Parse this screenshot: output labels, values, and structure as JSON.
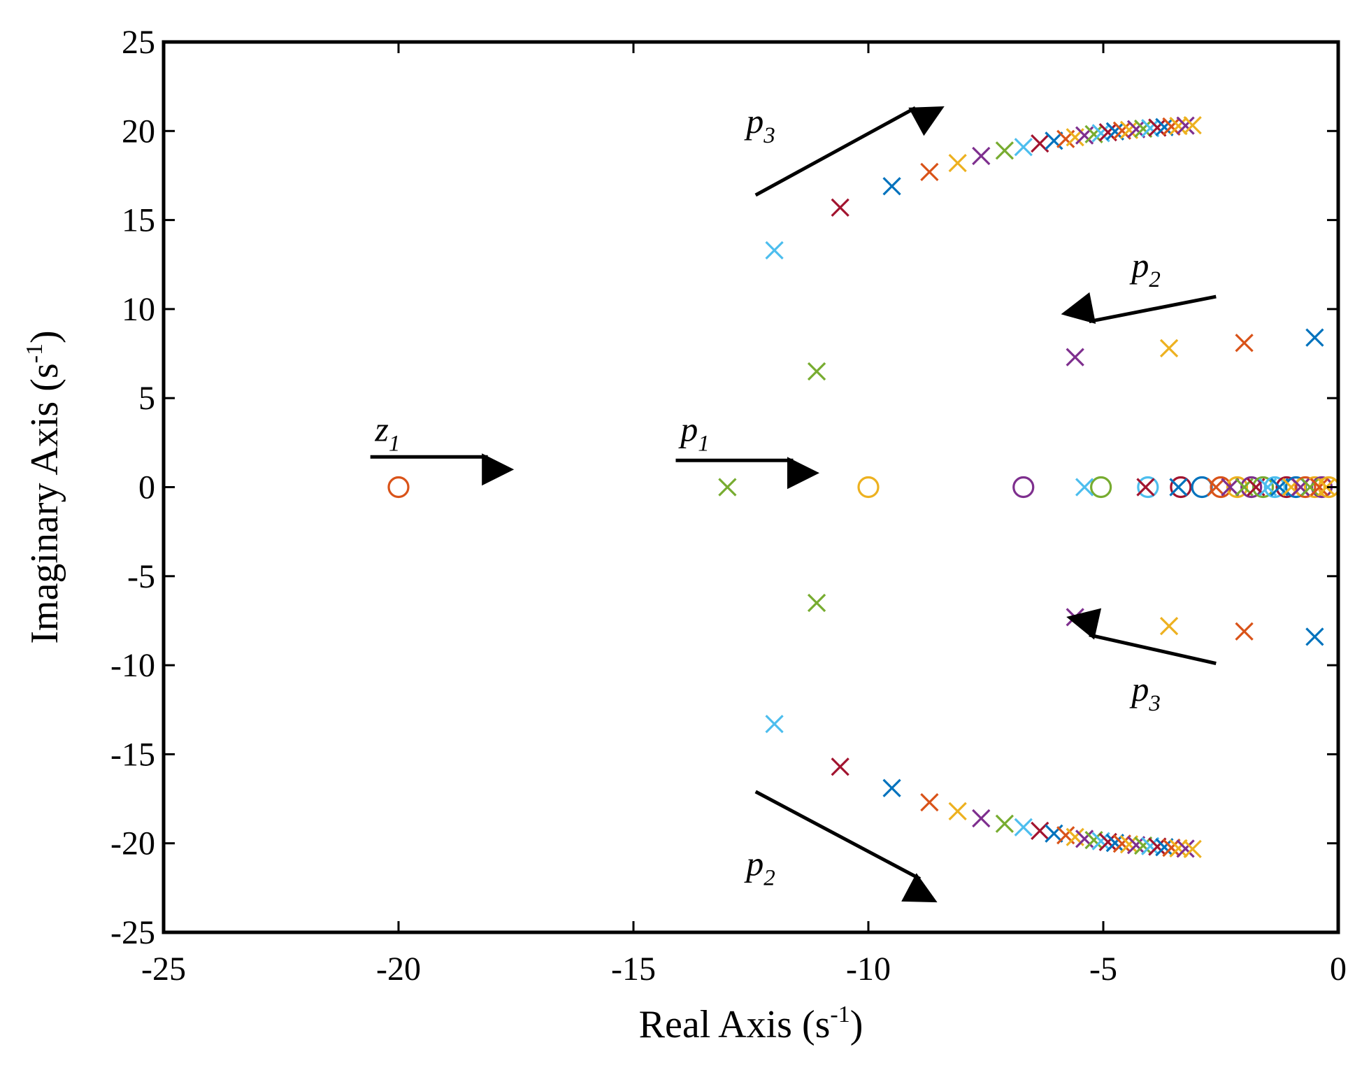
{
  "chart_data": {
    "type": "scatter",
    "title": "",
    "xlabel": {
      "text": "Real Axis (s",
      "sup": "-1",
      "close": ")"
    },
    "ylabel": {
      "text": "Imaginary Axis (s",
      "sup": "-1",
      "close": ")"
    },
    "xlim": [
      -25,
      0
    ],
    "ylim": [
      -25,
      25
    ],
    "xticks": [
      -25,
      -20,
      -15,
      -10,
      -5,
      0
    ],
    "yticks": [
      -25,
      -20,
      -15,
      -10,
      -5,
      0,
      5,
      10,
      15,
      20,
      25
    ],
    "grid": false,
    "palette": [
      "#0072BD",
      "#D95319",
      "#EDB120",
      "#7E2F8E",
      "#77AC30",
      "#4DBEEE",
      "#A2142F"
    ],
    "poles": [
      {
        "x": -0.5,
        "y": 8.4,
        "c": 0
      },
      {
        "x": -0.5,
        "y": -8.4,
        "c": 0
      },
      {
        "x": -2.0,
        "y": 8.1,
        "c": 1
      },
      {
        "x": -2.0,
        "y": -8.1,
        "c": 1
      },
      {
        "x": -3.6,
        "y": 7.8,
        "c": 2
      },
      {
        "x": -3.6,
        "y": -7.8,
        "c": 2
      },
      {
        "x": -5.6,
        "y": 7.3,
        "c": 3
      },
      {
        "x": -5.6,
        "y": -7.3,
        "c": 3
      },
      {
        "x": -11.1,
        "y": 6.5,
        "c": 4
      },
      {
        "x": -11.1,
        "y": -6.5,
        "c": 4
      },
      {
        "x": -12.0,
        "y": 13.3,
        "c": 5
      },
      {
        "x": -12.0,
        "y": -13.3,
        "c": 5
      },
      {
        "x": -10.6,
        "y": 15.7,
        "c": 6
      },
      {
        "x": -10.6,
        "y": -15.7,
        "c": 6
      },
      {
        "x": -9.5,
        "y": 16.9,
        "c": 0
      },
      {
        "x": -9.5,
        "y": -16.9,
        "c": 0
      },
      {
        "x": -8.7,
        "y": 17.7,
        "c": 1
      },
      {
        "x": -8.7,
        "y": -17.7,
        "c": 1
      },
      {
        "x": -8.1,
        "y": 18.2,
        "c": 2
      },
      {
        "x": -8.1,
        "y": -18.2,
        "c": 2
      },
      {
        "x": -7.6,
        "y": 18.6,
        "c": 3
      },
      {
        "x": -7.6,
        "y": -18.6,
        "c": 3
      },
      {
        "x": -7.1,
        "y": 18.9,
        "c": 4
      },
      {
        "x": -7.1,
        "y": -18.9,
        "c": 4
      },
      {
        "x": -6.7,
        "y": 19.1,
        "c": 5
      },
      {
        "x": -6.7,
        "y": -19.1,
        "c": 5
      },
      {
        "x": -6.35,
        "y": 19.3,
        "c": 6
      },
      {
        "x": -6.35,
        "y": -19.3,
        "c": 6
      },
      {
        "x": -6.05,
        "y": 19.45,
        "c": 0
      },
      {
        "x": -6.05,
        "y": -19.45,
        "c": 0
      },
      {
        "x": -5.8,
        "y": 19.55,
        "c": 1
      },
      {
        "x": -5.8,
        "y": -19.55,
        "c": 1
      },
      {
        "x": -5.6,
        "y": 19.65,
        "c": 2
      },
      {
        "x": -5.6,
        "y": -19.65,
        "c": 2
      },
      {
        "x": -5.4,
        "y": 19.75,
        "c": 3
      },
      {
        "x": -5.4,
        "y": -19.75,
        "c": 3
      },
      {
        "x": -5.2,
        "y": 19.82,
        "c": 4
      },
      {
        "x": -5.2,
        "y": -19.82,
        "c": 4
      },
      {
        "x": -5.05,
        "y": 19.88,
        "c": 5
      },
      {
        "x": -5.05,
        "y": -19.88,
        "c": 5
      },
      {
        "x": -4.9,
        "y": 19.93,
        "c": 6
      },
      {
        "x": -4.9,
        "y": -19.93,
        "c": 6
      },
      {
        "x": -4.75,
        "y": 19.98,
        "c": 0
      },
      {
        "x": -4.75,
        "y": -19.98,
        "c": 0
      },
      {
        "x": -4.6,
        "y": 20.02,
        "c": 1
      },
      {
        "x": -4.6,
        "y": -20.02,
        "c": 1
      },
      {
        "x": -4.45,
        "y": 20.06,
        "c": 2
      },
      {
        "x": -4.45,
        "y": -20.06,
        "c": 2
      },
      {
        "x": -4.3,
        "y": 20.1,
        "c": 3
      },
      {
        "x": -4.3,
        "y": -20.1,
        "c": 3
      },
      {
        "x": -4.15,
        "y": 20.13,
        "c": 4
      },
      {
        "x": -4.15,
        "y": -20.13,
        "c": 4
      },
      {
        "x": -4.0,
        "y": 20.16,
        "c": 5
      },
      {
        "x": -4.0,
        "y": -20.16,
        "c": 5
      },
      {
        "x": -3.85,
        "y": 20.19,
        "c": 6
      },
      {
        "x": -3.85,
        "y": -20.19,
        "c": 6
      },
      {
        "x": -3.7,
        "y": 20.22,
        "c": 0
      },
      {
        "x": -3.7,
        "y": -20.22,
        "c": 0
      },
      {
        "x": -3.55,
        "y": 20.25,
        "c": 1
      },
      {
        "x": -3.55,
        "y": -20.25,
        "c": 1
      },
      {
        "x": -3.4,
        "y": 20.28,
        "c": 2
      },
      {
        "x": -3.4,
        "y": -20.28,
        "c": 2
      },
      {
        "x": -3.25,
        "y": 20.3,
        "c": 3
      },
      {
        "x": -3.25,
        "y": -20.3,
        "c": 3
      },
      {
        "x": -3.1,
        "y": 20.32,
        "c": 2
      },
      {
        "x": -3.1,
        "y": -20.32,
        "c": 2
      },
      {
        "x": -13.0,
        "y": 0,
        "c": 4
      },
      {
        "x": -5.4,
        "y": 0,
        "c": 5
      },
      {
        "x": -4.1,
        "y": 0,
        "c": 6
      },
      {
        "x": -3.4,
        "y": 0,
        "c": 0
      },
      {
        "x": -2.6,
        "y": 0,
        "c": 1
      },
      {
        "x": -2.3,
        "y": 0,
        "c": 3
      },
      {
        "x": -2.0,
        "y": 0,
        "c": 4
      },
      {
        "x": -1.75,
        "y": 0,
        "c": 6
      },
      {
        "x": -1.5,
        "y": 0,
        "c": 5
      },
      {
        "x": -1.25,
        "y": 0,
        "c": 0
      },
      {
        "x": -1.0,
        "y": 0,
        "c": 2
      },
      {
        "x": -0.8,
        "y": 0,
        "c": 3
      },
      {
        "x": -0.6,
        "y": 0,
        "c": 4
      },
      {
        "x": -0.4,
        "y": 0,
        "c": 1
      },
      {
        "x": -0.25,
        "y": 0,
        "c": 2
      }
    ],
    "zeros": [
      {
        "x": -20.0,
        "y": 0,
        "c": 1
      },
      {
        "x": -10.0,
        "y": 0,
        "c": 2
      },
      {
        "x": -6.7,
        "y": 0,
        "c": 3
      },
      {
        "x": -5.05,
        "y": 0,
        "c": 4
      },
      {
        "x": -4.05,
        "y": 0,
        "c": 5
      },
      {
        "x": -3.35,
        "y": 0,
        "c": 6
      },
      {
        "x": -2.9,
        "y": 0,
        "c": 0
      },
      {
        "x": -2.5,
        "y": 0,
        "c": 1
      },
      {
        "x": -2.15,
        "y": 0,
        "c": 2
      },
      {
        "x": -1.85,
        "y": 0,
        "c": 3
      },
      {
        "x": -1.6,
        "y": 0,
        "c": 4
      },
      {
        "x": -1.35,
        "y": 0,
        "c": 5
      },
      {
        "x": -1.1,
        "y": 0,
        "c": 6
      },
      {
        "x": -0.9,
        "y": 0,
        "c": 0
      },
      {
        "x": -0.7,
        "y": 0,
        "c": 1
      },
      {
        "x": -0.5,
        "y": 0,
        "c": 2
      },
      {
        "x": -0.35,
        "y": 0,
        "c": 3
      },
      {
        "x": -0.2,
        "y": 0,
        "c": 2
      }
    ],
    "annotations": [
      {
        "name": "z1",
        "main": "z",
        "sub": "1",
        "label_at": [
          -20.5,
          2.6
        ],
        "arrow_from": [
          -20.6,
          1.7
        ],
        "arrow_to": [
          -18.1,
          1.7
        ]
      },
      {
        "name": "p1",
        "main": "p",
        "sub": "1",
        "label_at": [
          -14.0,
          2.6
        ],
        "arrow_from": [
          -14.1,
          1.5
        ],
        "arrow_to": [
          -11.6,
          1.5
        ]
      },
      {
        "name": "p3-upper",
        "main": "p",
        "sub": "3",
        "label_at": [
          -12.6,
          19.9
        ],
        "arrow_from": [
          -12.4,
          16.4
        ],
        "arrow_to": [
          -9.0,
          21.3
        ]
      },
      {
        "name": "p2-right",
        "main": "p",
        "sub": "2",
        "label_at": [
          -4.4,
          11.8
        ],
        "arrow_from": [
          -2.6,
          10.7
        ],
        "arrow_to": [
          -5.3,
          9.3
        ]
      },
      {
        "name": "p3-right",
        "main": "p",
        "sub": "3",
        "label_at": [
          -4.4,
          -12.0
        ],
        "arrow_from": [
          -2.6,
          -9.9
        ],
        "arrow_to": [
          -5.3,
          -8.3
        ]
      },
      {
        "name": "p2-lower",
        "main": "p",
        "sub": "2",
        "label_at": [
          -12.6,
          -21.8
        ],
        "arrow_from": [
          -12.4,
          -17.1
        ],
        "arrow_to": [
          -8.9,
          -22.0
        ]
      }
    ]
  }
}
